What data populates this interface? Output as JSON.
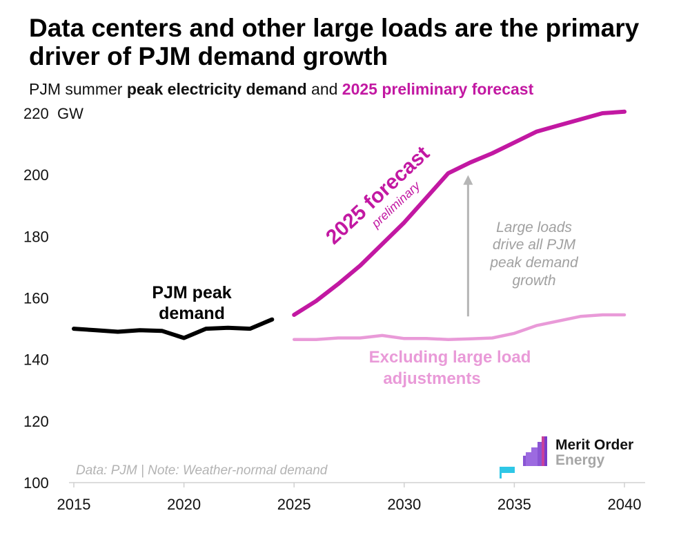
{
  "chart_data": {
    "type": "line",
    "title": "Data centers and other large loads are the primary driver of PJM demand growth",
    "subtitle": {
      "prefix": "PJM summer ",
      "bold": "peak electricity demand",
      "middle": " and ",
      "highlight": "2025 preliminary forecast"
    },
    "ylabel": "GW",
    "ylim": [
      100,
      220
    ],
    "yticks": [
      100,
      120,
      140,
      160,
      180,
      200,
      220
    ],
    "xlim": [
      2015,
      2040
    ],
    "xticks": [
      2015,
      2020,
      2025,
      2030,
      2035,
      2040
    ],
    "series": [
      {
        "name": "PJM peak demand",
        "color": "#000000",
        "label_lines": [
          "PJM peak",
          "demand"
        ],
        "x": [
          2015,
          2016,
          2017,
          2018,
          2019,
          2020,
          2021,
          2022,
          2023,
          2024
        ],
        "y": [
          150.0,
          149.5,
          149.0,
          149.5,
          149.3,
          147.0,
          150.0,
          150.3,
          150.0,
          153.0
        ]
      },
      {
        "name": "2025 forecast",
        "color": "#c218a2",
        "label": "2025 forecast",
        "sublabel": "preliminary",
        "x": [
          2025,
          2026,
          2027,
          2028,
          2029,
          2030,
          2031,
          2032,
          2033,
          2034,
          2035,
          2036,
          2037,
          2038,
          2039,
          2040
        ],
        "y": [
          154.5,
          159.0,
          164.5,
          170.5,
          177.5,
          184.5,
          192.5,
          200.5,
          204.0,
          207.0,
          210.5,
          214.0,
          216.0,
          218.0,
          220.0,
          220.5
        ]
      },
      {
        "name": "Excluding large load adjustments",
        "color": "#e99ad8",
        "label_lines": [
          "Excluding large load",
          "adjustments"
        ],
        "x": [
          2025,
          2026,
          2027,
          2028,
          2029,
          2030,
          2031,
          2032,
          2033,
          2034,
          2035,
          2036,
          2037,
          2038,
          2039,
          2040
        ],
        "y": [
          146.5,
          146.5,
          147.0,
          147.0,
          147.8,
          146.8,
          146.8,
          146.5,
          146.7,
          147.0,
          148.5,
          151.0,
          152.5,
          154.0,
          154.5,
          154.5
        ]
      }
    ],
    "annotations": [
      {
        "text_lines": [
          "Large loads",
          "drive all PJM",
          "peak demand",
          "growth"
        ],
        "arrow_x": 2032.9,
        "arrow_from": 154,
        "arrow_to": 199
      }
    ],
    "note": "Data: PJM | Note: Weather-normal demand"
  },
  "logo": {
    "line1": "Merit Order",
    "line2": "Energy"
  },
  "colors": {
    "actual": "#000000",
    "forecast": "#c218a2",
    "excl": "#e99ad8",
    "annotation": "#a0a0a0",
    "axis": "#d0d0d0"
  }
}
